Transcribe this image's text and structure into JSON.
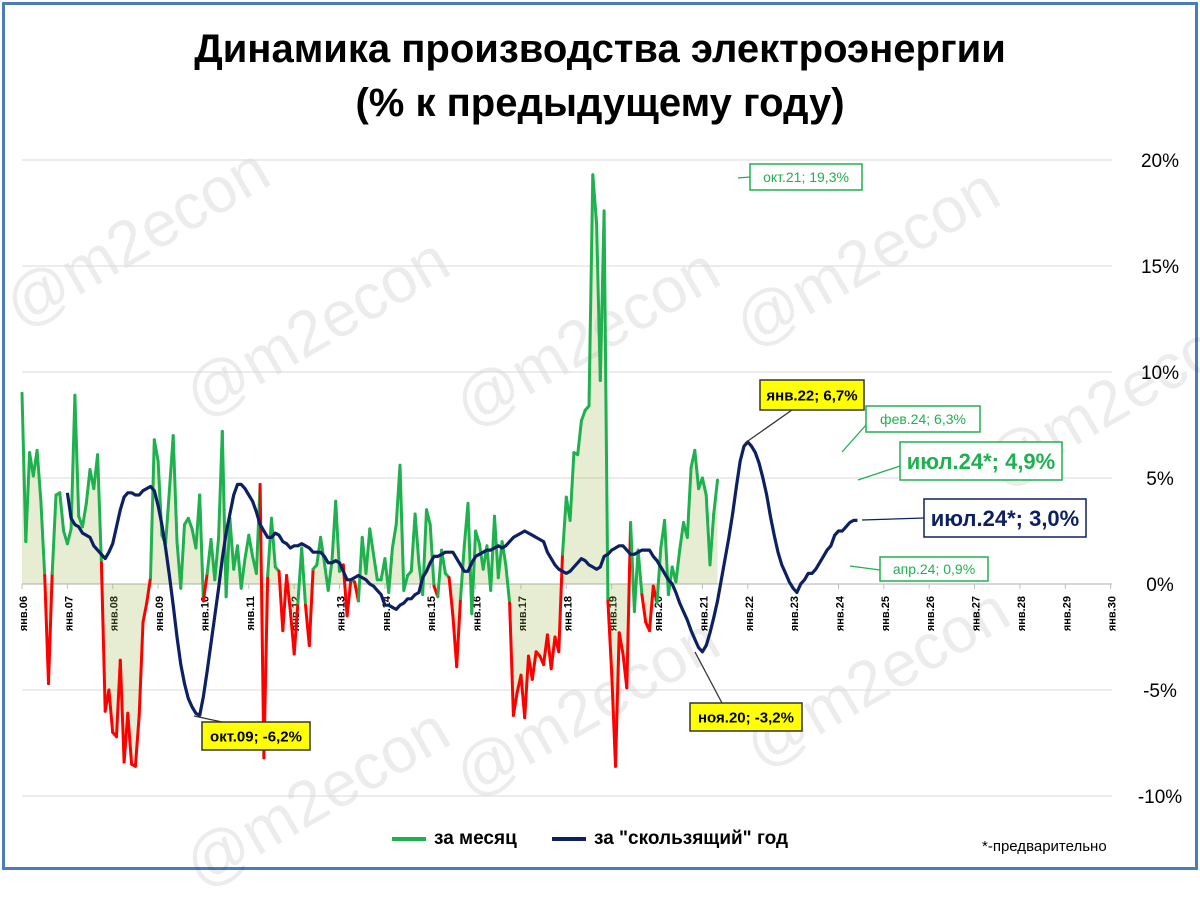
{
  "title_line1": "Динамика производства электроэнергии",
  "title_line2": "(% к предыдущему году)",
  "watermark": "@m2econ",
  "note": "*-предварительно",
  "colors": {
    "monthly_up": "#1fb14f",
    "monthly_down": "#ff0000",
    "rolling": "#0d2062",
    "callout_yellow": "#ffff00",
    "grid": "#d9d9d9",
    "frame": "#4a7ebb"
  },
  "chart_data": {
    "type": "line",
    "x_range": [
      "2006-01",
      "2030-01"
    ],
    "x_tick_labels": [
      "янв.06",
      "янв.07",
      "янв.08",
      "янв.09",
      "янв.10",
      "янв.11",
      "янв.12",
      "янв.13",
      "янв.14",
      "янв.15",
      "янв.16",
      "янв.17",
      "янв.18",
      "янв.19",
      "янв.20",
      "янв.21",
      "янв.22",
      "янв.23",
      "янв.24",
      "янв.25",
      "янв.26",
      "янв.27",
      "янв.28",
      "янв.29",
      "янв.30"
    ],
    "y_ticks": [
      -10,
      -5,
      0,
      5,
      10,
      15,
      20
    ],
    "y_tick_labels": [
      "-10%",
      "-5%",
      "0%",
      "5%",
      "10%",
      "15%",
      "20%"
    ],
    "ylim": [
      -10,
      20
    ],
    "legend_position": "bottom",
    "series": [
      {
        "name": "за месяц",
        "color_positive": "#1fb14f",
        "color_negative": "#ff0000",
        "values": [
          9.0,
          2.0,
          6.2,
          5.1,
          6.3,
          3.9,
          0.4,
          -4.7,
          0.5,
          4.2,
          4.3,
          2.5,
          1.9,
          2.6,
          8.9,
          3.2,
          2.7,
          3.8,
          5.4,
          4.5,
          6.1,
          1.0,
          -6.0,
          -5.0,
          -7.0,
          -7.2,
          -3.6,
          -8.4,
          -6.1,
          -8.5,
          -8.6,
          -6.2,
          -1.8,
          -0.9,
          0.3,
          6.8,
          5.8,
          2.3,
          1.9,
          4.4,
          7.0,
          2.0,
          -0.2,
          2.8,
          3.1,
          2.6,
          1.7,
          4.2,
          -0.8,
          0.5,
          2.1,
          0.2,
          2.2,
          7.2,
          -0.6,
          3.1,
          0.7,
          1.8,
          -0.2,
          1.2,
          2.3,
          1.3,
          0.5,
          4.7,
          -8.2,
          0.4,
          3.1,
          0.8,
          0.6,
          -2.2,
          0.4,
          -1.3,
          -3.3,
          -0.9,
          1.7,
          -1.0,
          -2.9,
          0.7,
          0.9,
          2.2,
          1.0,
          -0.3,
          1.1,
          3.9,
          0.6,
          0.9,
          -1.5,
          0.2,
          0.1,
          -0.8,
          2.2,
          0.5,
          2.6,
          1.4,
          0.2,
          0.2,
          1.2,
          -0.4,
          1.7,
          2.8,
          5.6,
          -0.3,
          0.4,
          0.6,
          3.3,
          1.0,
          -0.5,
          3.5,
          2.8,
          -0.1,
          -0.6,
          1.6,
          0.5,
          0.3,
          -1.5,
          -3.9,
          -0.7,
          1.8,
          3.8,
          -1.4,
          2.5,
          1.9,
          0.7,
          1.8,
          -0.3,
          3.2,
          0.3,
          2.0,
          0.9,
          -0.9,
          -6.2,
          -5.1,
          -4.3,
          -6.3,
          -3.4,
          -4.5,
          -3.2,
          -3.4,
          -3.8,
          -2.4,
          -4.0,
          -2.5,
          -3.2,
          1.4,
          4.1,
          3.0,
          6.2,
          6.1,
          7.7,
          8.2,
          8.4,
          19.3,
          17.0,
          9.6,
          17.6,
          -0.8,
          -4.2,
          -8.6,
          -2.3,
          -3.3,
          -4.9,
          2.9,
          -1.3,
          1.6,
          -0.5,
          -1.8,
          -2.2,
          -0.1,
          -0.9,
          1.7,
          3.0,
          -0.5,
          0.8,
          0.1,
          1.6,
          2.9,
          2.2,
          5.5,
          6.3,
          4.5,
          5.0,
          4.2,
          0.9,
          3.3,
          4.9
        ]
      },
      {
        "name": "за \"скользящий\" год",
        "color": "#0d2062",
        "values": [
          null,
          null,
          null,
          null,
          null,
          null,
          null,
          null,
          null,
          null,
          null,
          null,
          4.3,
          3.1,
          2.8,
          2.7,
          2.4,
          2.3,
          2.2,
          1.8,
          1.6,
          1.4,
          1.2,
          1.5,
          1.9,
          2.7,
          3.5,
          4.1,
          4.3,
          4.3,
          4.2,
          4.2,
          4.4,
          4.5,
          4.6,
          4.4,
          3.7,
          2.8,
          1.7,
          0.4,
          -1.0,
          -2.5,
          -3.8,
          -4.7,
          -5.4,
          -5.8,
          -6.1,
          -6.2,
          -5.3,
          -4.1,
          -2.8,
          -1.5,
          -0.2,
          1.2,
          2.4,
          3.3,
          4.2,
          4.7,
          4.7,
          4.5,
          4.2,
          3.9,
          3.4,
          2.8,
          2.5,
          2.2,
          2.2,
          2.4,
          2.3,
          2.0,
          1.9,
          1.7,
          1.8,
          1.8,
          1.9,
          1.8,
          1.7,
          1.5,
          1.5,
          1.5,
          1.3,
          1.0,
          1.0,
          1.1,
          1.0,
          0.6,
          0.2,
          0.2,
          0.3,
          0.4,
          0.3,
          0.2,
          0.0,
          -0.1,
          -0.3,
          -0.5,
          -1.0,
          -1.0,
          -1.1,
          -1.2,
          -1.0,
          -0.9,
          -0.7,
          -0.7,
          -0.5,
          -0.4,
          0.3,
          0.6,
          1.0,
          1.3,
          1.3,
          1.4,
          1.5,
          1.5,
          1.5,
          1.2,
          0.9,
          0.6,
          0.6,
          1.0,
          1.3,
          1.4,
          1.5,
          1.6,
          1.6,
          1.7,
          1.8,
          1.7,
          1.8,
          2.0,
          2.2,
          2.3,
          2.4,
          2.5,
          2.4,
          2.3,
          2.2,
          2.1,
          2.0,
          1.5,
          1.2,
          0.9,
          0.7,
          0.6,
          0.5,
          0.6,
          0.8,
          1.0,
          1.2,
          1.1,
          0.9,
          0.8,
          0.7,
          0.8,
          1.3,
          1.4,
          1.6,
          1.7,
          1.8,
          1.8,
          1.6,
          1.4,
          1.4,
          1.5,
          1.6,
          1.6,
          1.6,
          1.3,
          1.1,
          0.8,
          0.5,
          0.2,
          0.0,
          -0.4,
          -0.9,
          -1.3,
          -1.7,
          -2.2,
          -2.6,
          -3.0,
          -3.2,
          -2.9,
          -2.3,
          -1.6,
          -0.8,
          0.2,
          1.2,
          2.2,
          3.3,
          4.6,
          5.8,
          6.5,
          6.7,
          6.5,
          6.2,
          5.7,
          5.0,
          4.2,
          3.2,
          2.3,
          1.5,
          0.9,
          0.5,
          0.1,
          -0.2,
          -0.4,
          0.0,
          0.2,
          0.5,
          0.5,
          0.7,
          1.0,
          1.3,
          1.6,
          1.8,
          2.3,
          2.5,
          2.5,
          2.7,
          2.9,
          3.0,
          3.0
        ]
      }
    ],
    "annotations": [
      {
        "label": "окт.21; 19,3%",
        "style": "green-outline"
      },
      {
        "label": "янв.22; 6,7%",
        "style": "yellow"
      },
      {
        "label": "фев.24; 6,3%",
        "style": "green-outline"
      },
      {
        "label": "июл.24*; 4,9%",
        "style": "green-outline-large"
      },
      {
        "label": "июл.24*; 3,0%",
        "style": "navy-outline-large"
      },
      {
        "label": "апр.24; 0,9%",
        "style": "green-outline"
      },
      {
        "label": "окт.09; -6,2%",
        "style": "yellow"
      },
      {
        "label": "ноя.20; -3,2%",
        "style": "yellow"
      }
    ]
  }
}
